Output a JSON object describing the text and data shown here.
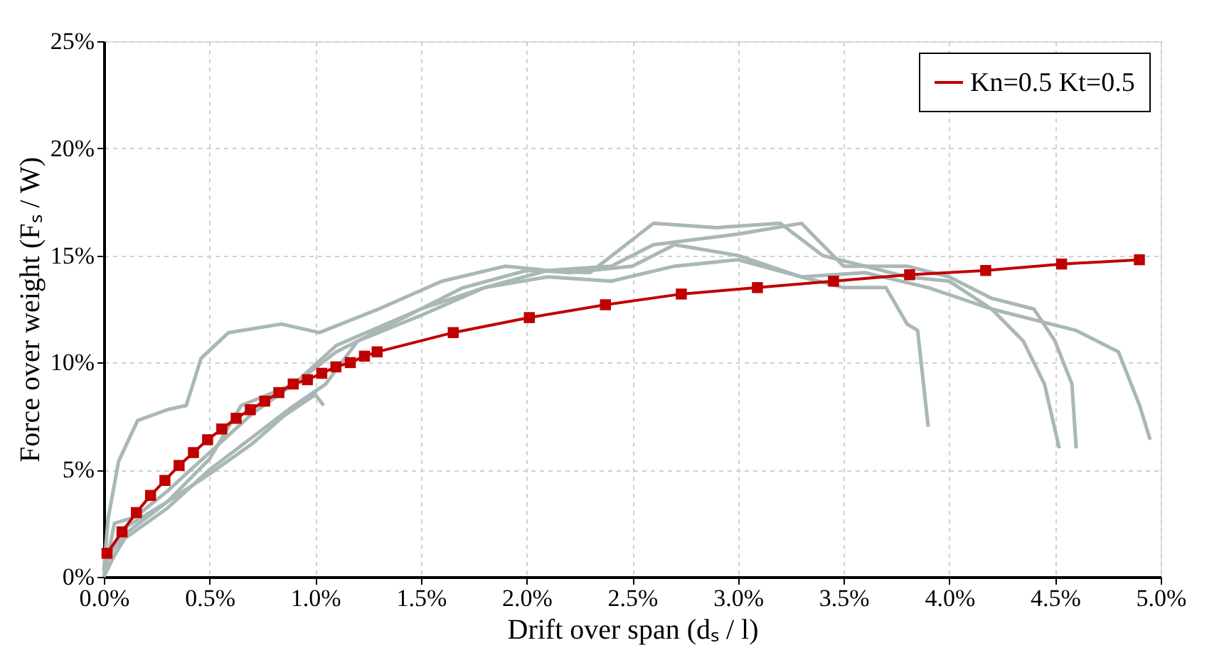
{
  "chart_data": {
    "type": "line",
    "xlabel": "Drift over span  (dₛ / l)",
    "ylabel": "Force over weight   (Fₛ / W)",
    "xlim": [
      0,
      5
    ],
    "ylim": [
      0,
      25
    ],
    "xticks": [
      {
        "value": 0,
        "label": "0.0%"
      },
      {
        "value": 0.5,
        "label": "0.5%"
      },
      {
        "value": 1,
        "label": "1.0%"
      },
      {
        "value": 1.5,
        "label": "1.5%"
      },
      {
        "value": 2,
        "label": "2.0%"
      },
      {
        "value": 2.5,
        "label": "2.5%"
      },
      {
        "value": 3,
        "label": "3.0%"
      },
      {
        "value": 3.5,
        "label": "3.5%"
      },
      {
        "value": 4,
        "label": "4.0%"
      },
      {
        "value": 4.5,
        "label": "4.5%"
      },
      {
        "value": 5,
        "label": "5.0%"
      }
    ],
    "yticks": [
      {
        "value": 0,
        "label": "0%"
      },
      {
        "value": 5,
        "label": "5%"
      },
      {
        "value": 10,
        "label": "10%"
      },
      {
        "value": 15,
        "label": "15%"
      },
      {
        "value": 20,
        "label": "20%"
      },
      {
        "value": 25,
        "label": "25%"
      }
    ],
    "grid": true,
    "legend": "top right",
    "line_style": "solid",
    "series": [
      {
        "color": "#a9b8b5",
        "marker": "none",
        "x": [
          0,
          0.02,
          0.07,
          0.16,
          0.3,
          0.39,
          0.46,
          0.59,
          0.84,
          1.02,
          1.3,
          1.6,
          1.9,
          2.2,
          2.5,
          2.7,
          3.0,
          3.3,
          3.5,
          3.7,
          3.8,
          3.85,
          3.9
        ],
        "values": [
          0.3,
          2.7,
          5.4,
          7.3,
          7.8,
          8.0,
          10.2,
          11.4,
          11.8,
          11.4,
          12.5,
          13.8,
          14.5,
          14.2,
          14.5,
          15.5,
          15.0,
          14.0,
          13.5,
          13.5,
          11.8,
          11.5,
          7.0
        ]
      },
      {
        "color": "#a9b8b5",
        "marker": "none",
        "x": [
          0,
          0.05,
          0.15,
          0.3,
          0.5,
          0.7,
          0.9,
          1.1,
          1.4,
          1.7,
          2.0,
          2.3,
          2.6,
          2.9,
          3.2,
          3.4,
          3.6,
          3.8,
          4.0,
          4.2,
          4.35,
          4.45,
          4.52
        ],
        "values": [
          0,
          2.5,
          2.8,
          4.0,
          5.8,
          7.6,
          9.0,
          10.5,
          12.0,
          13.5,
          14.3,
          14.2,
          16.5,
          16.3,
          16.5,
          15.0,
          14.5,
          14.0,
          13.8,
          12.5,
          11.0,
          9.0,
          6.0
        ]
      },
      {
        "color": "#a9b8b5",
        "marker": "none",
        "x": [
          0,
          0.1,
          0.3,
          0.5,
          0.65,
          0.9,
          1.1,
          1.5,
          1.8,
          2.1,
          2.4,
          2.6,
          3.0,
          3.3,
          3.5,
          3.8,
          4.0,
          4.2,
          4.4,
          4.5,
          4.58,
          4.6
        ],
        "values": [
          0.5,
          2.3,
          3.5,
          5.5,
          8.0,
          9.0,
          10.8,
          12.5,
          13.5,
          14.3,
          14.5,
          15.5,
          16.0,
          16.5,
          14.5,
          14.5,
          14.0,
          13.0,
          12.5,
          11.0,
          9.0,
          6.0
        ]
      },
      {
        "color": "#a9b8b5",
        "marker": "none",
        "x": [
          0,
          0.1,
          0.3,
          0.5,
          0.7,
          0.9,
          1.05,
          1.2,
          1.5,
          1.8,
          2.1,
          2.4,
          2.7,
          3.0,
          3.3,
          3.6,
          3.9,
          4.2,
          4.4,
          4.6,
          4.8,
          4.9,
          4.95
        ],
        "values": [
          0.2,
          1.8,
          3.2,
          5.0,
          6.5,
          8.0,
          9.0,
          11.0,
          12.2,
          13.5,
          14.0,
          13.8,
          14.5,
          14.8,
          14.0,
          14.2,
          13.5,
          12.5,
          12.0,
          11.5,
          10.5,
          8.0,
          6.4
        ]
      },
      {
        "color": "#a9b8b5",
        "marker": "none",
        "x": [
          0,
          0.1,
          0.3,
          0.5,
          0.7,
          0.85,
          1.0,
          1.04
        ],
        "values": [
          0,
          2.0,
          3.5,
          4.8,
          6.2,
          7.5,
          8.5,
          8.0
        ]
      },
      {
        "name": "Kn=0.5 Kt=0.5",
        "color": "#c00000",
        "marker": "square",
        "x": [
          0.015,
          0.086,
          0.154,
          0.221,
          0.289,
          0.356,
          0.424,
          0.491,
          0.558,
          0.626,
          0.693,
          0.761,
          0.828,
          0.896,
          0.963,
          1.031,
          1.098,
          1.166,
          1.233,
          1.293,
          1.653,
          2.013,
          2.373,
          2.732,
          3.092,
          3.452,
          3.812,
          4.172,
          4.531,
          4.899
        ],
        "values": [
          1.1,
          2.1,
          3.0,
          3.8,
          4.5,
          5.2,
          5.8,
          6.4,
          6.9,
          7.4,
          7.8,
          8.2,
          8.6,
          9.0,
          9.2,
          9.5,
          9.8,
          10.0,
          10.3,
          10.5,
          11.4,
          12.1,
          12.7,
          13.2,
          13.5,
          13.8,
          14.1,
          14.3,
          14.6,
          14.8
        ]
      }
    ]
  }
}
